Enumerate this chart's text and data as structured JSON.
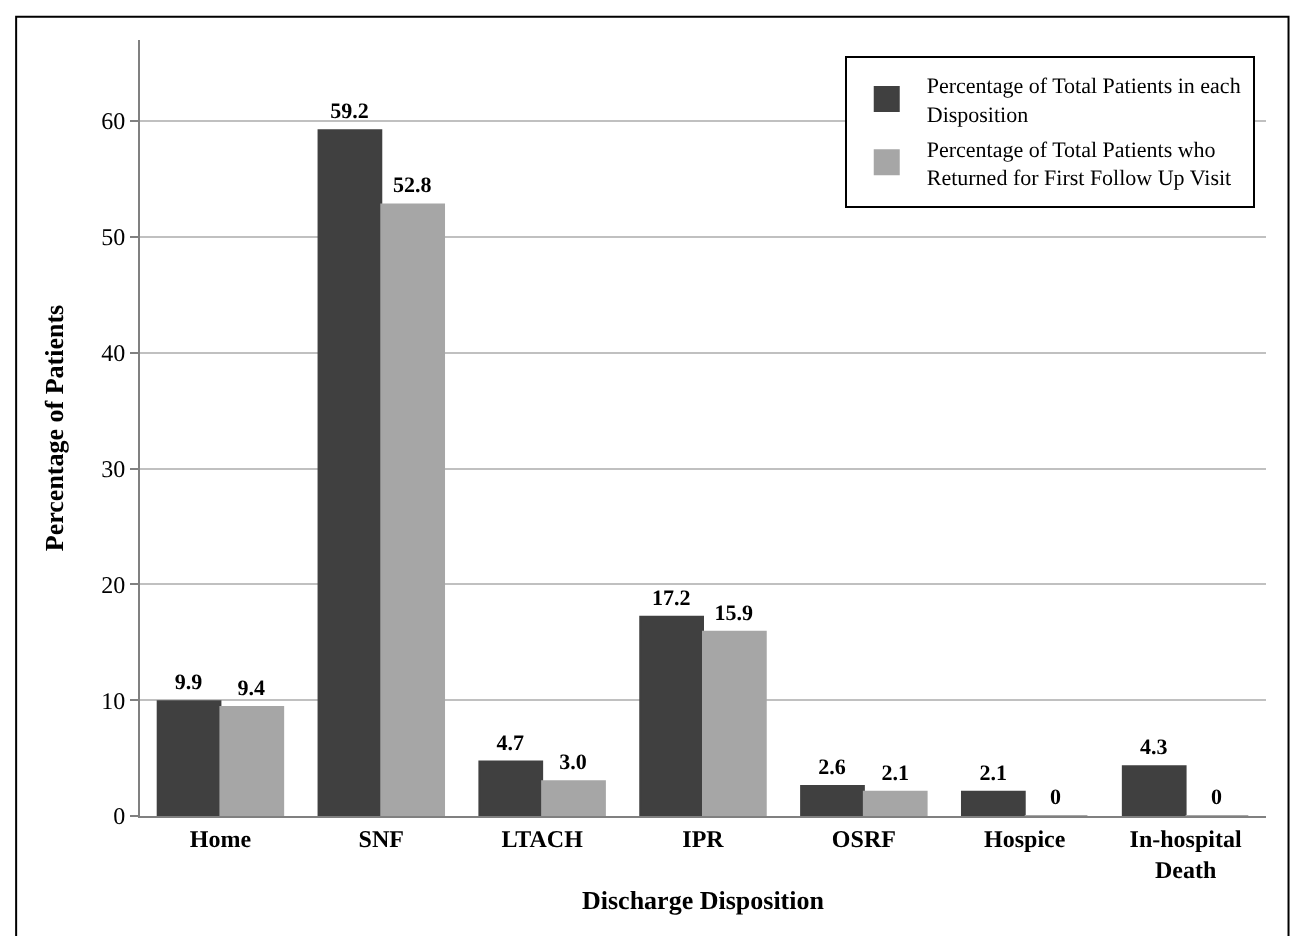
{
  "chart_data": {
    "type": "bar",
    "xlabel": "Discharge Disposition",
    "ylabel": "Percentage of Patients",
    "categories": [
      "Home",
      "SNF",
      "LTACH",
      "IPR",
      "OSRF",
      "Hospice",
      "In-hospital Death"
    ],
    "series": [
      {
        "name": "Percentage of Total Patients in each Disposition",
        "color": "#404040",
        "values": [
          9.9,
          59.2,
          4.7,
          17.2,
          2.6,
          2.1,
          4.3
        ],
        "value_labels": [
          "9.9",
          "59.2",
          "4.7",
          "17.2",
          "2.6",
          "2.1",
          "4.3"
        ]
      },
      {
        "name": "Percentage of Total Patients who Returned for First Follow Up Visit",
        "color": "#a6a6a6",
        "values": [
          9.4,
          52.8,
          3.0,
          15.9,
          2.1,
          0,
          0
        ],
        "value_labels": [
          "9.4",
          "52.8",
          "3.0",
          "15.9",
          "2.1",
          "0",
          "0"
        ]
      }
    ],
    "ylim": [
      0,
      67
    ],
    "yticks": [
      0,
      10,
      20,
      30,
      40,
      50,
      60
    ],
    "grid": "y",
    "legend": "top right"
  }
}
